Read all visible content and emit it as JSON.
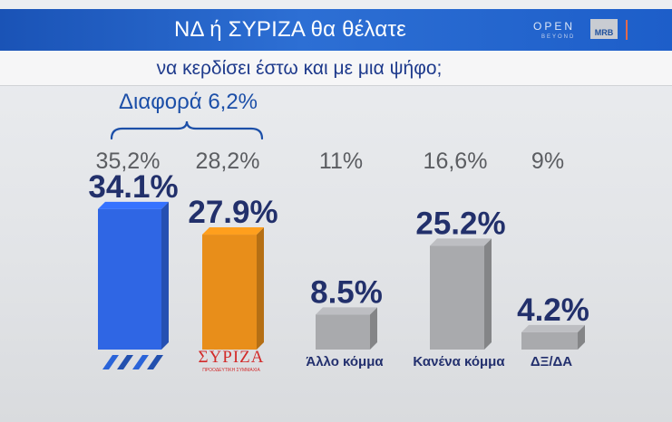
{
  "header": {
    "title": "ΝΔ  ή ΣΥΡΙΖΑ θα θέλατε",
    "subtitle": "να κερδίσει έστω και με μια ψήφο;",
    "logo_main": "OPEN",
    "logo_sub": "BEYOND",
    "logo_mrb": "MRB"
  },
  "difference_label": "Διαφορά 6,2%",
  "chart_data": {
    "type": "bar",
    "categories": [
      "ΝΔ",
      "ΣΥΡΙΖΑ",
      "Άλλο κόμμα",
      "Κανένα κόμμα",
      "ΔΞ/ΔΑ"
    ],
    "category_labels_shown": [
      "",
      "",
      "Άλλο κόμμα",
      "Κανένα κόμμα",
      "ΔΞ/ΔΑ"
    ],
    "series": [
      {
        "values": [
          34.1,
          27.9,
          8.5,
          25.2,
          4.2
        ],
        "labels": [
          "34.1%",
          "27.9%",
          "8.5%",
          "25.2%",
          "4.2%"
        ]
      },
      {
        "values": [
          35.2,
          28.2,
          11,
          16.6,
          9
        ],
        "labels": [
          "35,2%",
          "28,2%",
          "11%",
          "16,6%",
          "9%"
        ]
      }
    ],
    "colors": [
      "#2f66e4",
      "#e88e1a",
      "#a9aaad",
      "#a9aaad",
      "#a9aaad"
    ],
    "party_logos": {
      "nd": {
        "color": "#2a64d9"
      },
      "syriza": {
        "text": "ΣΥΡΙΖΑ",
        "subtext": "ΠΡΟΟΔΕΥΤΙΚΗ ΣΥΜΜΑΧΙΑ",
        "color": "#d22a2a"
      }
    },
    "annotation": "Διαφορά 6,2%",
    "ylim": [
      0,
      40
    ],
    "grid": false,
    "legend": "none"
  }
}
